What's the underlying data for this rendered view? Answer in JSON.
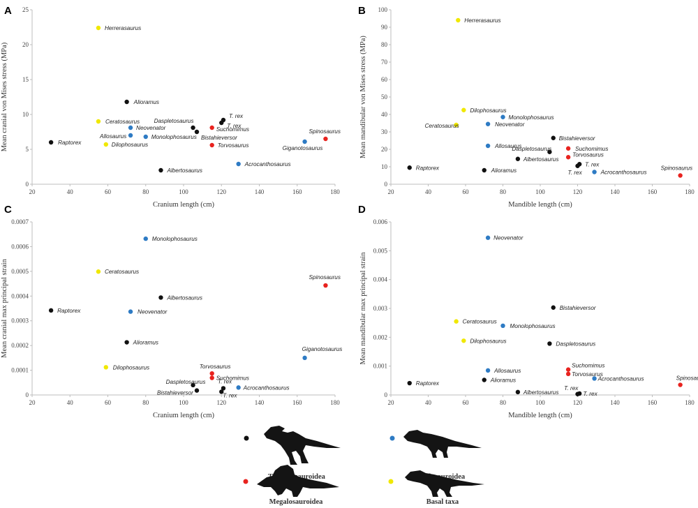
{
  "colors": {
    "Tyrannosauroidea": "#111111",
    "Allosauroidea": "#2e7bc4",
    "Megalosauroidea": "#e8231f",
    "Basal taxa": "#f0e800"
  },
  "legend": {
    "items": [
      {
        "group": "Tyrannosauroidea",
        "label": "Tyrannosauroidea"
      },
      {
        "group": "Allosauroidea",
        "label": "Allosauroidea"
      },
      {
        "group": "Megalosauroidea",
        "label": "Megalosauroidea"
      },
      {
        "group": "Basal taxa",
        "label": "Basal taxa"
      }
    ]
  },
  "chart_data": [
    {
      "panel": "A",
      "type": "scatter",
      "xlabel": "Cranium length (cm)",
      "ylabel": "Mean cranial von Mises stress (MPa)",
      "xlim": [
        20,
        180
      ],
      "ylim": [
        0,
        25
      ],
      "xticks": [
        "20",
        "40",
        "60",
        "80",
        "100",
        "120",
        "140",
        "160",
        "180"
      ],
      "yticks": [
        "0",
        "5",
        "10",
        "15",
        "20",
        "25"
      ],
      "points": [
        {
          "label": "Herrerasaurus",
          "x": 55,
          "y": 22.4,
          "group": "Basal taxa"
        },
        {
          "label": "Alioramus",
          "x": 70,
          "y": 11.8,
          "group": "Tyrannosauroidea"
        },
        {
          "label": "Ceratosaurus",
          "x": 55,
          "y": 9.0,
          "group": "Basal taxa"
        },
        {
          "label": "Neovenator",
          "x": 72,
          "y": 8.1,
          "group": "Allosauroidea"
        },
        {
          "label": "Allosaurus",
          "x": 72,
          "y": 7.0,
          "group": "Allosauroidea"
        },
        {
          "label": "Monolophosaurus",
          "x": 80,
          "y": 6.8,
          "group": "Allosauroidea"
        },
        {
          "label": "Dilophosaurus",
          "x": 59,
          "y": 5.7,
          "group": "Basal taxa"
        },
        {
          "label": "Raptorex",
          "x": 30,
          "y": 6.0,
          "group": "Tyrannosauroidea"
        },
        {
          "label": "Daspletosaurus",
          "x": 105,
          "y": 8.1,
          "group": "Tyrannosauroidea"
        },
        {
          "label": "Bistahieversor",
          "x": 107,
          "y": 7.5,
          "group": "Tyrannosauroidea"
        },
        {
          "label": "T. rex",
          "x": 121,
          "y": 9.2,
          "group": "Tyrannosauroidea"
        },
        {
          "label": "T. rex",
          "x": 120,
          "y": 8.8,
          "group": "Tyrannosauroidea"
        },
        {
          "label": "Suchomimus",
          "x": 115,
          "y": 8.1,
          "group": "Megalosauroidea"
        },
        {
          "label": "Torvosaurus",
          "x": 115,
          "y": 5.6,
          "group": "Megalosauroidea"
        },
        {
          "label": "Albertosaurus",
          "x": 88,
          "y": 2.0,
          "group": "Tyrannosauroidea"
        },
        {
          "label": "Acrocanthosaurus",
          "x": 129,
          "y": 2.9,
          "group": "Allosauroidea"
        },
        {
          "label": "Giganotosaurus",
          "x": 164,
          "y": 6.1,
          "group": "Allosauroidea"
        },
        {
          "label": "Spinosaurus",
          "x": 175,
          "y": 6.5,
          "group": "Megalosauroidea"
        }
      ]
    },
    {
      "panel": "B",
      "type": "scatter",
      "xlabel": "Mandible length (cm)",
      "ylabel": "Mean mandibular von Mises stress (MPa)",
      "xlim": [
        20,
        180
      ],
      "ylim": [
        0,
        100
      ],
      "xticks": [
        "20",
        "40",
        "60",
        "80",
        "100",
        "120",
        "140",
        "160",
        "180"
      ],
      "yticks": [
        "0",
        "10",
        "20",
        "30",
        "40",
        "50",
        "60",
        "70",
        "80",
        "90",
        "100"
      ],
      "points": [
        {
          "label": "Herrerasaurus",
          "x": 56,
          "y": 94,
          "group": "Basal taxa"
        },
        {
          "label": "Dilophosaurus",
          "x": 59,
          "y": 42.5,
          "group": "Basal taxa"
        },
        {
          "label": "Monolophosaurus",
          "x": 80,
          "y": 38.5,
          "group": "Allosauroidea"
        },
        {
          "label": "Neovenator",
          "x": 72,
          "y": 34.5,
          "group": "Allosauroidea"
        },
        {
          "label": "Ceratosaurus",
          "x": 55,
          "y": 34,
          "group": "Basal taxa"
        },
        {
          "label": "Bistahieversor",
          "x": 107,
          "y": 26.5,
          "group": "Tyrannosauroidea"
        },
        {
          "label": "Allosaurus",
          "x": 72,
          "y": 22,
          "group": "Allosauroidea"
        },
        {
          "label": "Suchomimus",
          "x": 115,
          "y": 20.5,
          "group": "Megalosauroidea"
        },
        {
          "label": "Daspletosaurus",
          "x": 105,
          "y": 18.5,
          "group": "Tyrannosauroidea"
        },
        {
          "label": "Torvosaurus",
          "x": 115,
          "y": 15.5,
          "group": "Megalosauroidea"
        },
        {
          "label": "Albertosaurus",
          "x": 88,
          "y": 14.5,
          "group": "Tyrannosauroidea"
        },
        {
          "label": "T. rex",
          "x": 121,
          "y": 11.5,
          "group": "Tyrannosauroidea"
        },
        {
          "label": "T. rex",
          "x": 120,
          "y": 10.5,
          "group": "Tyrannosauroidea"
        },
        {
          "label": "Raptorex",
          "x": 30,
          "y": 9.5,
          "group": "Tyrannosauroidea"
        },
        {
          "label": "Alioramus",
          "x": 70,
          "y": 8,
          "group": "Tyrannosauroidea"
        },
        {
          "label": "Acrocanthosaurus",
          "x": 129,
          "y": 7,
          "group": "Allosauroidea"
        },
        {
          "label": "Spinosaurus",
          "x": 175,
          "y": 5,
          "group": "Megalosauroidea"
        }
      ]
    },
    {
      "panel": "C",
      "type": "scatter",
      "xlabel": "Cranium length (cm)",
      "ylabel": "Mean cranial max principal strain",
      "xlim": [
        20,
        180
      ],
      "ylim": [
        0,
        0.0007
      ],
      "xticks": [
        "20",
        "40",
        "60",
        "80",
        "100",
        "120",
        "140",
        "160",
        "180"
      ],
      "yticks": [
        "0",
        "0.0001",
        "0.0002",
        "0.0003",
        "0.0004",
        "0.0005",
        "0.0006",
        "0.0007"
      ],
      "points": [
        {
          "label": "Monolophosaurus",
          "x": 80,
          "y": 0.000632,
          "group": "Allosauroidea"
        },
        {
          "label": "Ceratosaurus",
          "x": 55,
          "y": 0.000499,
          "group": "Basal taxa"
        },
        {
          "label": "Spinosaurus",
          "x": 175,
          "y": 0.000443,
          "group": "Megalosauroidea"
        },
        {
          "label": "Albertosaurus",
          "x": 88,
          "y": 0.000394,
          "group": "Tyrannosauroidea"
        },
        {
          "label": "Raptorex",
          "x": 30,
          "y": 0.000342,
          "group": "Tyrannosauroidea"
        },
        {
          "label": "Neovenator",
          "x": 72,
          "y": 0.000337,
          "group": "Allosauroidea"
        },
        {
          "label": "Alioramus",
          "x": 70,
          "y": 0.000213,
          "group": "Tyrannosauroidea"
        },
        {
          "label": "Giganotosaurus",
          "x": 164,
          "y": 0.00015,
          "group": "Allosauroidea"
        },
        {
          "label": "Dilophosaurus",
          "x": 59,
          "y": 0.000112,
          "group": "Basal taxa"
        },
        {
          "label": "Torvosaurus",
          "x": 115,
          "y": 8.7e-05,
          "group": "Megalosauroidea"
        },
        {
          "label": "Suchomimus",
          "x": 115,
          "y": 6.9e-05,
          "group": "Megalosauroidea"
        },
        {
          "label": "T. rex",
          "x": 121,
          "y": 2.7e-05,
          "group": "Tyrannosauroidea"
        },
        {
          "label": "T. rex",
          "x": 120,
          "y": 1.3e-05,
          "group": "Tyrannosauroidea"
        },
        {
          "label": "Daspletosaurus",
          "x": 105,
          "y": 4e-05,
          "group": "Tyrannosauroidea"
        },
        {
          "label": "Bistahieversor",
          "x": 107,
          "y": 1.8e-05,
          "group": "Tyrannosauroidea"
        },
        {
          "label": "Acrocanthosaurus",
          "x": 129,
          "y": 3e-05,
          "group": "Allosauroidea"
        }
      ]
    },
    {
      "panel": "D",
      "type": "scatter",
      "xlabel": "Mandible length (cm)",
      "ylabel": "Mean mandibular max principal strain",
      "xlim": [
        20,
        180
      ],
      "ylim": [
        0,
        0.006
      ],
      "xticks": [
        "20",
        "40",
        "60",
        "80",
        "100",
        "120",
        "140",
        "160",
        "180"
      ],
      "yticks": [
        "0",
        "0.001",
        "0.002",
        "0.003",
        "0.004",
        "0.005",
        "0.006"
      ],
      "points": [
        {
          "label": "Neovenator",
          "x": 72,
          "y": 0.00545,
          "group": "Allosauroidea"
        },
        {
          "label": "Bistahieversor",
          "x": 107,
          "y": 0.00303,
          "group": "Tyrannosauroidea"
        },
        {
          "label": "Ceratosaurus",
          "x": 55,
          "y": 0.00255,
          "group": "Basal taxa"
        },
        {
          "label": "Monolophosaurus",
          "x": 80,
          "y": 0.0024,
          "group": "Allosauroidea"
        },
        {
          "label": "Dilophosaurus",
          "x": 59,
          "y": 0.00188,
          "group": "Basal taxa"
        },
        {
          "label": "Daspletosaurus",
          "x": 105,
          "y": 0.00178,
          "group": "Tyrannosauroidea"
        },
        {
          "label": "Suchomimus",
          "x": 115,
          "y": 0.00088,
          "group": "Megalosauroidea"
        },
        {
          "label": "Allosaurus",
          "x": 72,
          "y": 0.00085,
          "group": "Allosauroidea"
        },
        {
          "label": "Torvosaurus",
          "x": 115,
          "y": 0.00073,
          "group": "Megalosauroidea"
        },
        {
          "label": "Acrocanthosaurus",
          "x": 129,
          "y": 0.00057,
          "group": "Allosauroidea"
        },
        {
          "label": "Alioramus",
          "x": 70,
          "y": 0.00052,
          "group": "Tyrannosauroidea"
        },
        {
          "label": "Raptorex",
          "x": 30,
          "y": 0.00041,
          "group": "Tyrannosauroidea"
        },
        {
          "label": "Spinosaurus",
          "x": 175,
          "y": 0.00035,
          "group": "Megalosauroidea"
        },
        {
          "label": "Albertosaurus",
          "x": 88,
          "y": 0.0001,
          "group": "Tyrannosauroidea"
        },
        {
          "label": "T. rex",
          "x": 121,
          "y": 5e-05,
          "group": "Tyrannosauroidea"
        },
        {
          "label": "T. rex",
          "x": 120,
          "y": 3e-05,
          "group": "Tyrannosauroidea"
        }
      ]
    }
  ]
}
